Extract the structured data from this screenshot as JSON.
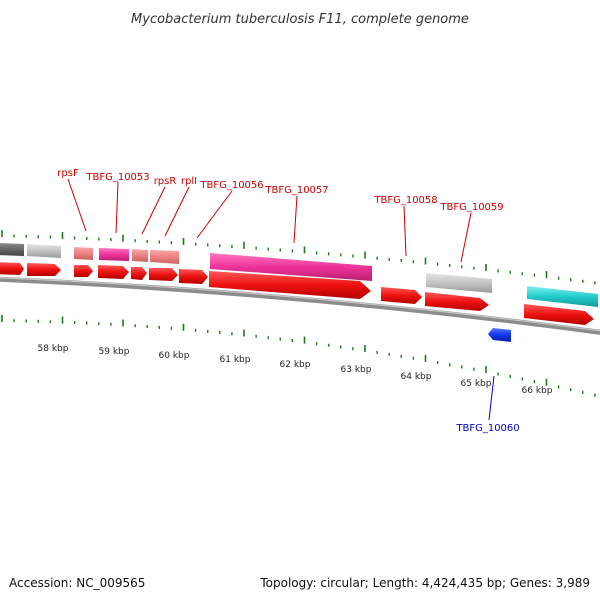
{
  "title": "Mycobacterium tuberculosis F11, complete genome",
  "footer": {
    "accession": "Accession: NC_009565",
    "topology": "Topology: circular; Length: 4,424,435 bp; Genes: 3,989"
  },
  "colors": {
    "forward_cds": "#ee1111",
    "reverse_cds": "#1133ee",
    "pink": "#ee3399",
    "salmon": "#f08080",
    "gray": "#c0c0c0",
    "darkgray": "#666666",
    "cyan": "#22cccc",
    "tick": "#227722",
    "backbone": "#8c8c8c",
    "forward_label": "#cc0000",
    "reverse_label": "#0000cc"
  },
  "kbp_labels": [
    "58 kbp",
    "59 kbp",
    "60 kbp",
    "61 kbp",
    "62 kbp",
    "63 kbp",
    "64 kbp",
    "65 kbp",
    "66 kbp"
  ],
  "gene_labels": [
    {
      "text": "rpsF",
      "strand": "forward"
    },
    {
      "text": "TBFG_10053",
      "strand": "forward"
    },
    {
      "text": "rpsR",
      "strand": "forward"
    },
    {
      "text": "rplI",
      "strand": "forward"
    },
    {
      "text": "TBFG_10056",
      "strand": "forward"
    },
    {
      "text": "TBFG_10057",
      "strand": "forward"
    },
    {
      "text": "TBFG_10058",
      "strand": "forward"
    },
    {
      "text": "TBFG_10059",
      "strand": "forward"
    },
    {
      "text": "TBFG_10060",
      "strand": "reverse"
    }
  ]
}
